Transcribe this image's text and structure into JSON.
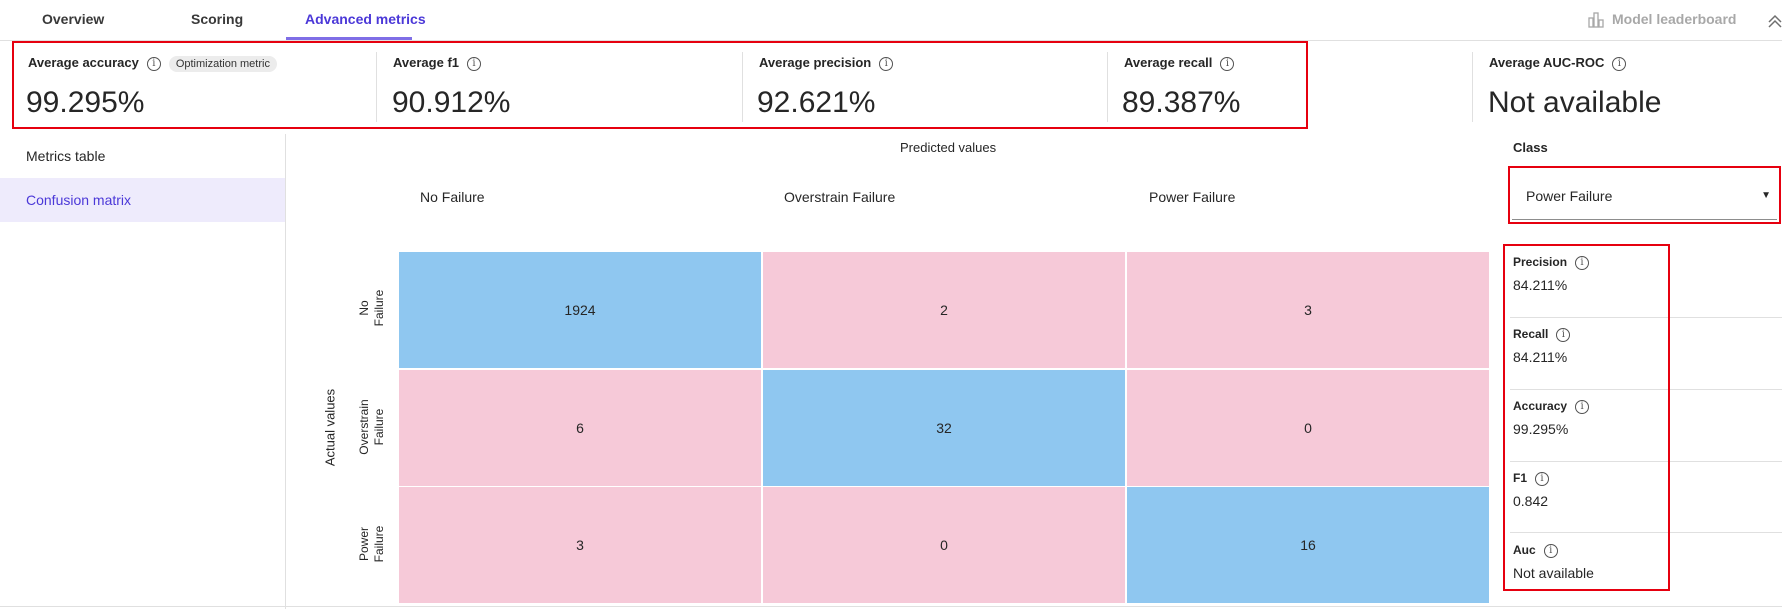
{
  "tabs": [
    {
      "label": "Overview"
    },
    {
      "label": "Scoring"
    },
    {
      "label": "Advanced metrics"
    }
  ],
  "leaderboard_label": "Model leaderboard",
  "metrics": [
    {
      "label": "Average accuracy",
      "badge": "Optimization metric",
      "value": "99.295%"
    },
    {
      "label": "Average f1",
      "value": "90.912%"
    },
    {
      "label": "Average precision",
      "value": "92.621%"
    },
    {
      "label": "Average recall",
      "value": "89.387%"
    },
    {
      "label": "Average AUC-ROC",
      "value": "Not available"
    }
  ],
  "nav": [
    {
      "label": "Metrics table"
    },
    {
      "label": "Confusion matrix"
    }
  ],
  "matrix": {
    "predicted_title": "Predicted values",
    "actual_title": "Actual values",
    "columns": [
      "No Failure",
      "Overstrain Failure",
      "Power Failure"
    ],
    "rows": [
      "No\nFailure",
      "Overstrain\nFailure",
      "Power\nFailure"
    ],
    "cells": [
      [
        "1924",
        "2",
        "3"
      ],
      [
        "6",
        "32",
        "0"
      ],
      [
        "3",
        "0",
        "16"
      ]
    ]
  },
  "class_panel": {
    "label": "Class",
    "selected": "Power Failure",
    "stats": [
      {
        "label": "Precision",
        "value": "84.211%"
      },
      {
        "label": "Recall",
        "value": "84.211%"
      },
      {
        "label": "Accuracy",
        "value": "99.295%"
      },
      {
        "label": "F1",
        "value": "0.842"
      },
      {
        "label": "Auc",
        "value": "Not available"
      }
    ]
  },
  "colors": {
    "accent": "#4b38d8",
    "diag_cell": "#8fc7f0",
    "off_cell": "#f6c9d8",
    "highlight_box": "#e6000f"
  }
}
